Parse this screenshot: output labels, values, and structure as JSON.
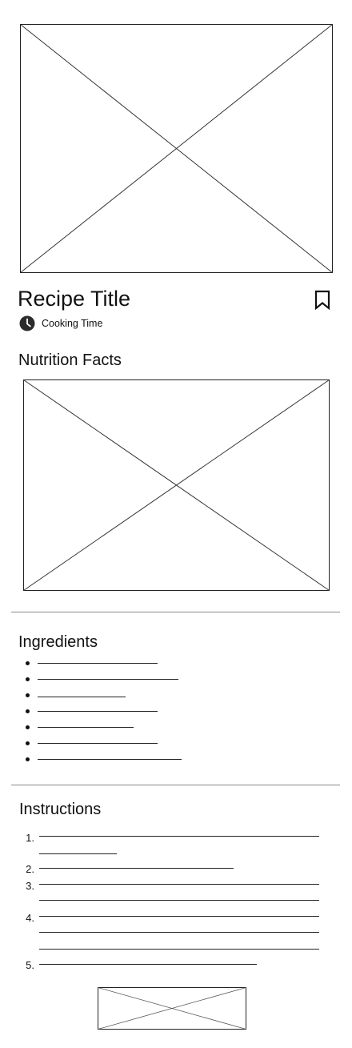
{
  "recipe": {
    "title": "Recipe Title",
    "cooking_time_label": "Cooking Time"
  },
  "sections": {
    "nutrition_heading": "Nutrition Facts",
    "ingredients_heading": "Ingredients",
    "instructions_heading": "Instructions"
  },
  "instructions": {
    "step_numbers": [
      "1.",
      "2.",
      "3.",
      "4.",
      "5."
    ]
  },
  "icons": {
    "bookmark": "bookmark-icon",
    "clock": "clock-icon"
  }
}
